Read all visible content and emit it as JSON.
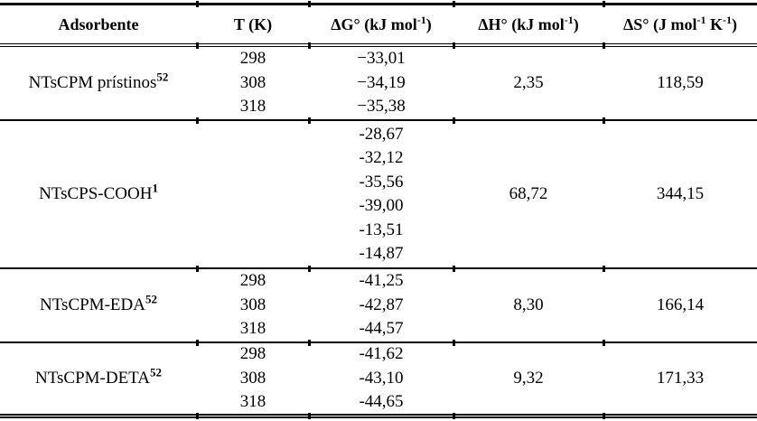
{
  "colors": {
    "text": "#000000",
    "background": "#ffffff",
    "rule": "#000000"
  },
  "table": {
    "headers": {
      "adsorbente": "Adsorbente",
      "temperature": "T (K)",
      "delta_g": {
        "base": "ΔG° (kJ mol",
        "sup": "-1",
        "end": ")"
      },
      "delta_h": {
        "base": "ΔH° (kJ mol",
        "sup": "-1",
        "end": ")"
      },
      "delta_s": {
        "base": "ΔS° (J mol",
        "sup1": "-1",
        "mid": " K",
        "sup2": "-1",
        "end": ")"
      }
    },
    "sections": [
      {
        "name": "NTsCPM prístinos",
        "ref": "52",
        "temps": [
          "298",
          "308",
          "318"
        ],
        "delta_g": [
          "−33,01",
          "−34,19",
          "−35,38"
        ],
        "delta_h": "2,35",
        "delta_s": "118,59"
      },
      {
        "name": "NTsCPS-COOH",
        "ref": "1",
        "temps": [],
        "delta_g": [
          "-28,67",
          "-32,12",
          "-35,56",
          "-39,00",
          "-13,51",
          "-14,87"
        ],
        "delta_h": "68,72",
        "delta_s": "344,15"
      },
      {
        "name": "NTsCPM-EDA",
        "ref": "52",
        "temps": [
          "298",
          "308",
          "318"
        ],
        "delta_g": [
          "-41,25",
          "-42,87",
          "-44,57"
        ],
        "delta_h": "8,30",
        "delta_s": "166,14"
      },
      {
        "name": "NTsCPM-DETA",
        "ref": "52",
        "temps": [
          "298",
          "308",
          "318"
        ],
        "delta_g": [
          "-41,62",
          "-43,10",
          "-44,65"
        ],
        "delta_h": "9,32",
        "delta_s": "171,33"
      }
    ]
  }
}
